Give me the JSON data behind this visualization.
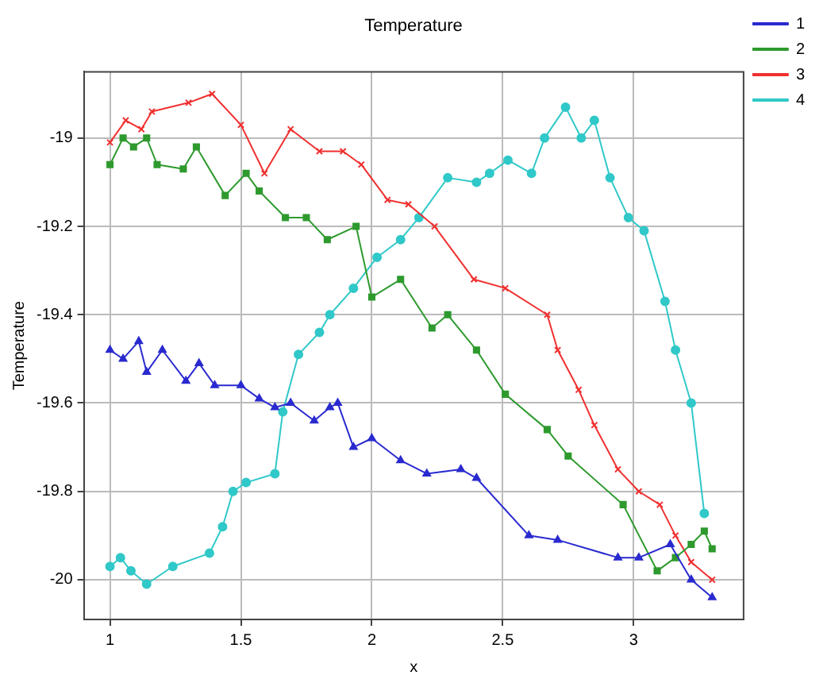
{
  "chart_data": {
    "type": "line",
    "title": "Temperature",
    "xlabel": "x",
    "ylabel": "Temperature",
    "xlim": [
      0.9,
      3.42
    ],
    "xticks": [
      1,
      1.5,
      2,
      2.5,
      3
    ],
    "ylim": [
      -20.09,
      -18.85
    ],
    "yticks": [
      -20,
      -19.8,
      -19.6,
      -19.4,
      -19.2,
      -19
    ],
    "grid": true,
    "legend": "top right",
    "line_style": "solid",
    "series": [
      {
        "name": "1",
        "color": "#2a2ad0",
        "marker": "triangle",
        "x": [
          1.0,
          1.05,
          1.11,
          1.14,
          1.2,
          1.29,
          1.34,
          1.4,
          1.5,
          1.57,
          1.63,
          1.69,
          1.78,
          1.84,
          1.87,
          1.93,
          2.0,
          2.11,
          2.21,
          2.34,
          2.4,
          2.6,
          2.71,
          2.94,
          3.02,
          3.14,
          3.22,
          3.3
        ],
        "values": [
          -19.48,
          -19.5,
          -19.46,
          -19.53,
          -19.48,
          -19.55,
          -19.51,
          -19.56,
          -19.56,
          -19.59,
          -19.61,
          -19.6,
          -19.64,
          -19.61,
          -19.6,
          -19.7,
          -19.68,
          -19.73,
          -19.76,
          -19.75,
          -19.77,
          -19.9,
          -19.91,
          -19.95,
          -19.95,
          -19.92,
          -20.0,
          -20.04
        ]
      },
      {
        "name": "2",
        "color": "#2e9a2e",
        "marker": "square",
        "x": [
          1.0,
          1.05,
          1.09,
          1.14,
          1.18,
          1.28,
          1.33,
          1.44,
          1.52,
          1.57,
          1.67,
          1.75,
          1.83,
          1.94,
          2.0,
          2.11,
          2.23,
          2.29,
          2.4,
          2.51,
          2.67,
          2.75,
          2.96,
          3.09,
          3.16,
          3.22,
          3.27,
          3.3
        ],
        "values": [
          -19.06,
          -19.0,
          -19.02,
          -19.0,
          -19.06,
          -19.07,
          -19.02,
          -19.13,
          -19.08,
          -19.12,
          -19.18,
          -19.18,
          -19.23,
          -19.2,
          -19.36,
          -19.32,
          -19.43,
          -19.4,
          -19.48,
          -19.58,
          -19.66,
          -19.72,
          -19.83,
          -19.98,
          -19.95,
          -19.92,
          -19.89,
          -19.93
        ]
      },
      {
        "name": "3",
        "color": "#f03030",
        "marker": "cross",
        "x": [
          1.0,
          1.06,
          1.12,
          1.16,
          1.3,
          1.39,
          1.5,
          1.59,
          1.69,
          1.8,
          1.89,
          1.96,
          2.06,
          2.14,
          2.24,
          2.39,
          2.51,
          2.67,
          2.71,
          2.79,
          2.85,
          2.94,
          3.02,
          3.1,
          3.16,
          3.22,
          3.3
        ],
        "values": [
          -19.01,
          -18.96,
          -18.98,
          -18.94,
          -18.92,
          -18.9,
          -18.97,
          -19.08,
          -18.98,
          -19.03,
          -19.03,
          -19.06,
          -19.14,
          -19.15,
          -19.2,
          -19.32,
          -19.34,
          -19.4,
          -19.48,
          -19.57,
          -19.65,
          -19.75,
          -19.8,
          -19.83,
          -19.9,
          -19.96,
          -20.0
        ]
      },
      {
        "name": "4",
        "color": "#30c8c8",
        "marker": "circle",
        "x": [
          1.0,
          1.04,
          1.08,
          1.14,
          1.24,
          1.38,
          1.43,
          1.47,
          1.52,
          1.63,
          1.66,
          1.72,
          1.8,
          1.84,
          1.93,
          2.02,
          2.11,
          2.18,
          2.29,
          2.4,
          2.45,
          2.52,
          2.61,
          2.66,
          2.74,
          2.8,
          2.85,
          2.91,
          2.98,
          3.04,
          3.12,
          3.16,
          3.22,
          3.27
        ],
        "values": [
          -19.97,
          -19.95,
          -19.98,
          -20.01,
          -19.97,
          -19.94,
          -19.88,
          -19.8,
          -19.78,
          -19.76,
          -19.62,
          -19.49,
          -19.44,
          -19.4,
          -19.34,
          -19.27,
          -19.23,
          -19.18,
          -19.09,
          -19.1,
          -19.08,
          -19.05,
          -19.08,
          -19.0,
          -18.93,
          -19.0,
          -18.96,
          -19.09,
          -19.18,
          -19.21,
          -19.37,
          -19.48,
          -19.6,
          -19.85
        ]
      }
    ]
  }
}
